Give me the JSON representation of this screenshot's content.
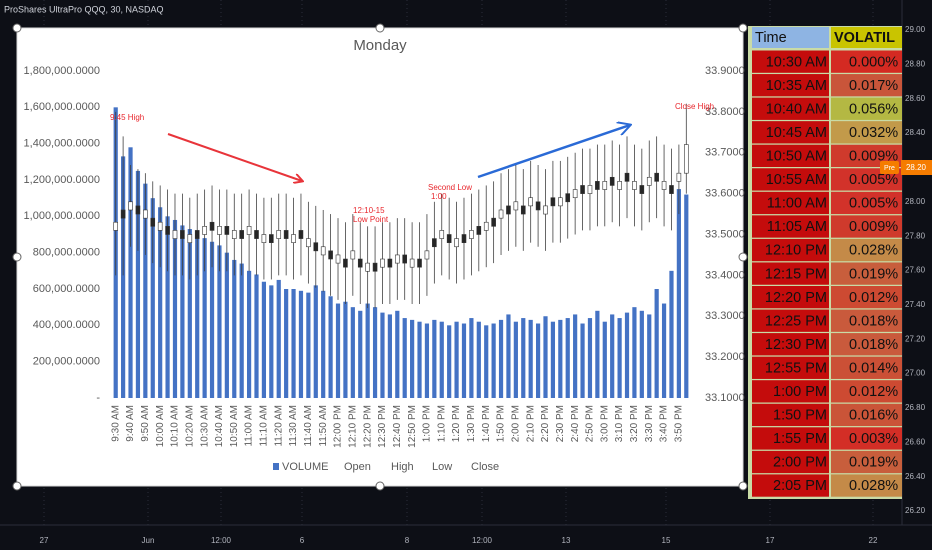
{
  "header": "ProShares UltraPro QQQ, 30, NASDAQ",
  "chart_data": {
    "type": "combo",
    "title": "Monday",
    "categories": [
      "9:30 AM",
      null,
      "9:40 AM",
      null,
      "9:50 AM",
      null,
      "10:00 AM",
      null,
      "10:10 AM",
      null,
      "10:20 AM",
      null,
      "10:30 AM",
      null,
      "10:40 AM",
      null,
      "10:50 AM",
      null,
      "11:00 AM",
      null,
      "11:10 AM",
      null,
      "11:20 AM",
      null,
      "11:30 AM",
      null,
      "11:40 AM",
      null,
      "11:50 AM",
      null,
      "12:00 PM",
      null,
      "12:10 PM",
      null,
      "12:20 PM",
      null,
      "12:30 PM",
      null,
      "12:40 PM",
      null,
      "12:50 PM",
      null,
      "1:00 PM",
      null,
      "1:10 PM",
      null,
      "1:20 PM",
      null,
      "1:30 PM",
      null,
      "1:40 PM",
      null,
      "1:50 PM",
      null,
      "2:00 PM",
      null,
      "2:10 PM",
      null,
      "2:20 PM",
      null,
      "2:30 PM",
      null,
      "2:40 PM",
      null,
      "2:50 PM",
      null,
      "3:00 PM",
      null,
      "3:10 PM",
      null,
      "3:20 PM",
      null,
      "3:30 PM",
      null,
      "3:40 PM",
      null,
      "3:50 PM",
      null
    ],
    "series": [
      {
        "name": "VOLUME",
        "color": "#4472c4",
        "values": [
          1600000,
          1330000,
          1380000,
          1250000,
          1180000,
          1100000,
          1050000,
          1000000,
          980000,
          950000,
          930000,
          900000,
          880000,
          860000,
          840000,
          800000,
          760000,
          740000,
          700000,
          680000,
          640000,
          620000,
          650000,
          600000,
          600000,
          590000,
          580000,
          620000,
          590000,
          560000,
          520000,
          530000,
          500000,
          480000,
          520000,
          500000,
          470000,
          460000,
          480000,
          440000,
          430000,
          420000,
          410000,
          430000,
          420000,
          400000,
          420000,
          410000,
          440000,
          420000,
          400000,
          410000,
          430000,
          460000,
          420000,
          440000,
          430000,
          410000,
          450000,
          420000,
          430000,
          440000,
          460000,
          410000,
          440000,
          480000,
          420000,
          460000,
          440000,
          470000,
          500000,
          480000,
          460000,
          600000,
          520000,
          700000,
          1150000,
          1120000
        ]
      },
      {
        "name": "Open",
        "axis": "y2",
        "values": [
          33.51,
          33.56,
          33.56,
          33.57,
          33.54,
          33.54,
          33.51,
          33.52,
          33.49,
          33.51,
          33.48,
          33.51,
          33.5,
          33.53,
          33.5,
          33.52,
          33.49,
          33.51,
          33.5,
          33.51,
          33.48,
          33.5,
          33.49,
          33.51,
          33.48,
          33.51,
          33.47,
          33.48,
          33.45,
          33.46,
          33.43,
          33.44,
          33.44,
          33.44,
          33.41,
          33.43,
          33.42,
          33.44,
          33.43,
          33.45,
          33.42,
          33.44,
          33.44,
          33.49,
          33.49,
          33.5,
          33.47,
          33.5,
          33.49,
          33.52,
          33.51,
          33.54,
          33.54,
          33.57,
          33.56,
          33.57,
          33.57,
          33.58,
          33.55,
          33.59,
          33.57,
          33.6,
          33.59,
          33.62,
          33.6,
          33.63,
          33.61,
          33.64,
          33.61,
          33.65,
          33.61,
          33.62,
          33.62,
          33.65,
          33.61,
          33.62,
          33.63,
          33.65
        ]
      },
      {
        "name": "High",
        "axis": "y2",
        "values": [
          33.8,
          33.74,
          33.67,
          33.66,
          33.65,
          33.63,
          33.62,
          33.61,
          33.6,
          33.6,
          33.59,
          33.6,
          33.61,
          33.62,
          33.61,
          33.61,
          33.6,
          33.6,
          33.61,
          33.6,
          33.59,
          33.59,
          33.6,
          33.6,
          33.59,
          33.6,
          33.58,
          33.57,
          33.56,
          33.55,
          33.54,
          33.53,
          33.55,
          33.53,
          33.52,
          33.52,
          33.53,
          33.53,
          33.54,
          33.54,
          33.53,
          33.53,
          33.55,
          33.58,
          33.6,
          33.59,
          33.58,
          33.59,
          33.6,
          33.61,
          33.62,
          33.63,
          33.65,
          33.66,
          33.67,
          33.66,
          33.68,
          33.67,
          33.66,
          33.68,
          33.68,
          33.69,
          33.7,
          33.71,
          33.71,
          33.72,
          33.72,
          33.73,
          33.72,
          33.74,
          33.72,
          33.71,
          33.73,
          33.74,
          33.72,
          33.71,
          33.72,
          33.82
        ]
      },
      {
        "name": "Low",
        "axis": "y2",
        "values": [
          33.4,
          33.4,
          33.47,
          33.46,
          33.45,
          33.43,
          33.42,
          33.41,
          33.4,
          33.4,
          33.39,
          33.4,
          33.41,
          33.42,
          33.41,
          33.41,
          33.4,
          33.4,
          33.41,
          33.4,
          33.39,
          33.39,
          33.4,
          33.4,
          33.39,
          33.4,
          33.38,
          33.37,
          33.36,
          33.35,
          33.34,
          33.33,
          33.35,
          33.33,
          33.32,
          33.32,
          33.33,
          33.33,
          33.34,
          33.34,
          33.33,
          33.33,
          33.35,
          33.38,
          33.4,
          33.39,
          33.38,
          33.39,
          33.4,
          33.41,
          33.42,
          33.43,
          33.45,
          33.46,
          33.47,
          33.46,
          33.48,
          33.47,
          33.46,
          33.48,
          33.48,
          33.49,
          33.5,
          33.51,
          33.51,
          33.52,
          33.52,
          33.53,
          33.52,
          33.54,
          33.52,
          33.51,
          33.53,
          33.54,
          33.52,
          33.51,
          33.55,
          33.6
        ]
      },
      {
        "name": "Close",
        "axis": "y2",
        "values": [
          33.53,
          33.54,
          33.58,
          33.55,
          33.56,
          33.52,
          33.53,
          33.5,
          33.51,
          33.49,
          33.5,
          33.49,
          33.52,
          33.51,
          33.52,
          33.5,
          33.51,
          33.49,
          33.52,
          33.49,
          33.5,
          33.48,
          33.51,
          33.49,
          33.5,
          33.49,
          33.49,
          33.46,
          33.47,
          33.44,
          33.45,
          33.42,
          33.46,
          33.42,
          33.43,
          33.41,
          33.44,
          33.42,
          33.45,
          33.43,
          33.44,
          33.42,
          33.46,
          33.47,
          33.51,
          33.48,
          33.49,
          33.48,
          33.51,
          33.5,
          33.53,
          33.52,
          33.56,
          33.55,
          33.58,
          33.55,
          33.59,
          33.56,
          33.57,
          33.57,
          33.59,
          33.58,
          33.61,
          33.6,
          33.62,
          33.61,
          33.63,
          33.62,
          33.63,
          33.63,
          33.63,
          33.6,
          33.64,
          33.63,
          33.63,
          33.6,
          33.65,
          33.72
        ]
      }
    ],
    "up_color": "#ffffff",
    "down_color": "#262626",
    "ylim": [
      0,
      1800000
    ],
    "yticks": [
      {
        "value": 0,
        "label": "-"
      },
      {
        "value": 200000,
        "label": "200,000.0000"
      },
      {
        "value": 400000,
        "label": "400,000.0000"
      },
      {
        "value": 600000,
        "label": "600,000.0000"
      },
      {
        "value": 800000,
        "label": "800,000.0000"
      },
      {
        "value": 1000000,
        "label": "1,000,000.0000"
      },
      {
        "value": 1200000,
        "label": "1,200,000.0000"
      },
      {
        "value": 1400000,
        "label": "1,400,000.0000"
      },
      {
        "value": 1600000,
        "label": "1,600,000.0000"
      },
      {
        "value": 1800000,
        "label": "1,800,000.0000"
      }
    ],
    "y2lim": [
      33.1,
      33.9
    ],
    "y2ticks": [
      {
        "value": 33.1,
        "label": "33.1000"
      },
      {
        "value": 33.2,
        "label": "33.2000"
      },
      {
        "value": 33.3,
        "label": "33.3000"
      },
      {
        "value": 33.4,
        "label": "33.4000"
      },
      {
        "value": 33.5,
        "label": "33.5000"
      },
      {
        "value": 33.6,
        "label": "33.6000"
      },
      {
        "value": 33.7,
        "label": "33.7000"
      },
      {
        "value": 33.8,
        "label": "33.8000"
      },
      {
        "value": 33.9,
        "label": "33.9000"
      }
    ],
    "grid": false,
    "annotations": [
      [
        "9:45 High"
      ],
      [
        "12:10-15",
        "Low Point"
      ],
      [
        "Second Low",
        "1:00"
      ],
      [
        "Close High"
      ]
    ]
  },
  "table": {
    "columns": [
      "Time",
      "VOLATIL"
    ],
    "rows": [
      {
        "time": "10:30 AM",
        "value": "0.000%",
        "color": "#d42a22"
      },
      {
        "time": "10:35 AM",
        "value": "0.017%",
        "color": "#c9553a"
      },
      {
        "time": "10:40 AM",
        "value": "0.056%",
        "color": "#b4b843"
      },
      {
        "time": "10:45 AM",
        "value": "0.032%",
        "color": "#c29a4a"
      },
      {
        "time": "10:50 AM",
        "value": "0.009%",
        "color": "#cf3a2c"
      },
      {
        "time": "10:55 AM",
        "value": "0.005%",
        "color": "#d2322a"
      },
      {
        "time": "11:00 AM",
        "value": "0.005%",
        "color": "#d2322a"
      },
      {
        "time": "11:05 AM",
        "value": "0.009%",
        "color": "#cf3a2c"
      },
      {
        "time": "12:10 PM",
        "value": "0.028%",
        "color": "#c48a48"
      },
      {
        "time": "12:15 PM",
        "value": "0.019%",
        "color": "#c85e3c"
      },
      {
        "time": "12:20 PM",
        "value": "0.012%",
        "color": "#cd4a32"
      },
      {
        "time": "12:25 PM",
        "value": "0.018%",
        "color": "#c95a3c"
      },
      {
        "time": "12:30 PM",
        "value": "0.018%",
        "color": "#c95a3c"
      },
      {
        "time": "12:55 PM",
        "value": "0.014%",
        "color": "#cb5036"
      },
      {
        "time": "1:00 PM",
        "value": "0.012%",
        "color": "#cd4a32"
      },
      {
        "time": "1:50 PM",
        "value": "0.016%",
        "color": "#ca5438"
      },
      {
        "time": "1:55 PM",
        "value": "0.003%",
        "color": "#d32e26"
      },
      {
        "time": "2:00 PM",
        "value": "0.019%",
        "color": "#c85e3c"
      },
      {
        "time": "2:05 PM",
        "value": "0.028%",
        "color": "#c48a48"
      }
    ]
  },
  "price_axis": {
    "labels": [
      "29.00",
      "28.80",
      "28.60",
      "28.40",
      "28.00",
      "27.80",
      "27.60",
      "27.40",
      "27.20",
      "27.00",
      "26.80",
      "26.60",
      "26.40",
      "26.20"
    ],
    "last_price": "28.20",
    "session": "Pre"
  },
  "time_axis": {
    "labels": [
      "27",
      "Jun",
      "12:00",
      "6",
      "8",
      "12:00",
      "13",
      "15",
      "17",
      "22"
    ]
  }
}
